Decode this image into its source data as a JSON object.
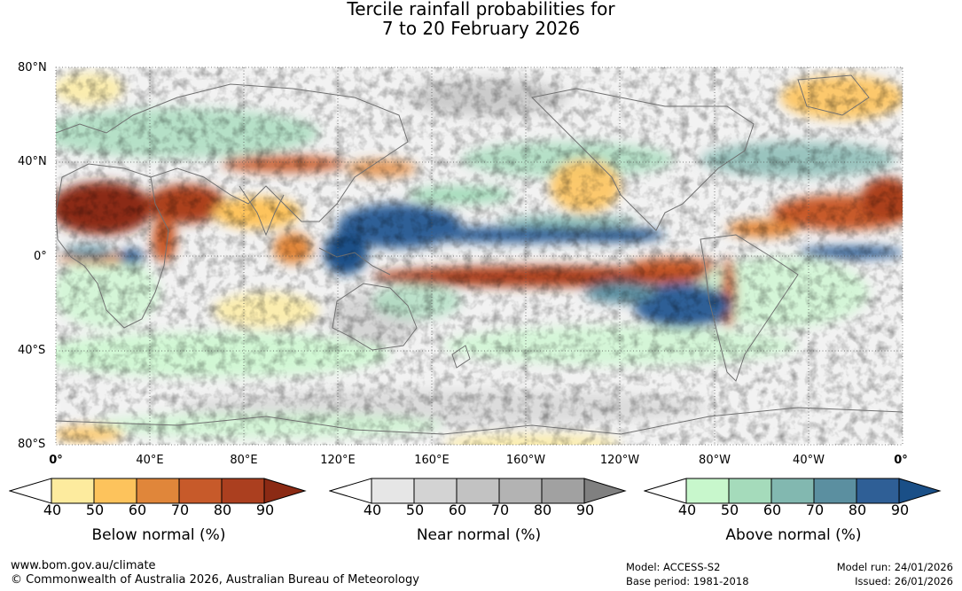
{
  "title": {
    "line1": "Tercile rainfall probabilities for",
    "line2": "7 to 20 February 2026"
  },
  "map": {
    "lat_labels": [
      "80°N",
      "40°N",
      "0°",
      "40°S",
      "80°S"
    ],
    "lon_labels": [
      "0°",
      "40°E",
      "80°E",
      "120°E",
      "160°E",
      "160°W",
      "120°W",
      "80°W",
      "40°W",
      "0°"
    ],
    "coastline_color": "#707070",
    "grid_style": "dotted",
    "features": [
      {
        "category": "below",
        "level": 90,
        "region": "Sahara / North Africa"
      },
      {
        "category": "below",
        "level": 90,
        "region": "Arabian Peninsula"
      },
      {
        "category": "below",
        "level": 90,
        "region": "Equatorial Pacific (south of equator)"
      },
      {
        "category": "below",
        "level": 80,
        "region": "Caribbean / northern South America"
      },
      {
        "category": "below",
        "level": 80,
        "region": "Western coast of South America"
      },
      {
        "category": "above",
        "level": 90,
        "region": "Western Pacific north of equator"
      },
      {
        "category": "above",
        "level": 90,
        "region": "Central Pacific band north of equator"
      },
      {
        "category": "above",
        "level": 90,
        "region": "Southeast Pacific"
      },
      {
        "category": "above",
        "level": 80,
        "region": "Equatorial Atlantic"
      },
      {
        "category": "above",
        "level": 80,
        "region": "Gulf of Guinea"
      }
    ]
  },
  "legends": [
    {
      "title": "Below normal (%)",
      "ticks": [
        "40",
        "50",
        "60",
        "70",
        "80",
        "90"
      ],
      "colors": [
        "#ffffff",
        "#fdeb9e",
        "#fdc35c",
        "#e0863a",
        "#c75a2a",
        "#ab3f1f",
        "#8b2a14"
      ]
    },
    {
      "title": "Near normal (%)",
      "ticks": [
        "40",
        "50",
        "60",
        "70",
        "80",
        "90"
      ],
      "colors": [
        "#ffffff",
        "#e6e6e6",
        "#d3d3d3",
        "#c2c2c2",
        "#b3b3b3",
        "#a1a1a1",
        "#808080"
      ]
    },
    {
      "title": "Above normal (%)",
      "ticks": [
        "40",
        "50",
        "60",
        "70",
        "80",
        "90"
      ],
      "colors": [
        "#ffffff",
        "#c8f7cc",
        "#a5dbbb",
        "#82b8b0",
        "#5b8fa0",
        "#2f5f96",
        "#1a4f87"
      ]
    }
  ],
  "footer": {
    "website": "www.bom.gov.au/climate",
    "copyright": "© Commonwealth of Australia 2026, Australian Bureau of Meteorology",
    "model": "Model: ACCESS-S2",
    "base_period": "Base period: 1981-2018",
    "model_run": "Model run: 24/01/2026",
    "issued": "Issued: 26/01/2026"
  }
}
